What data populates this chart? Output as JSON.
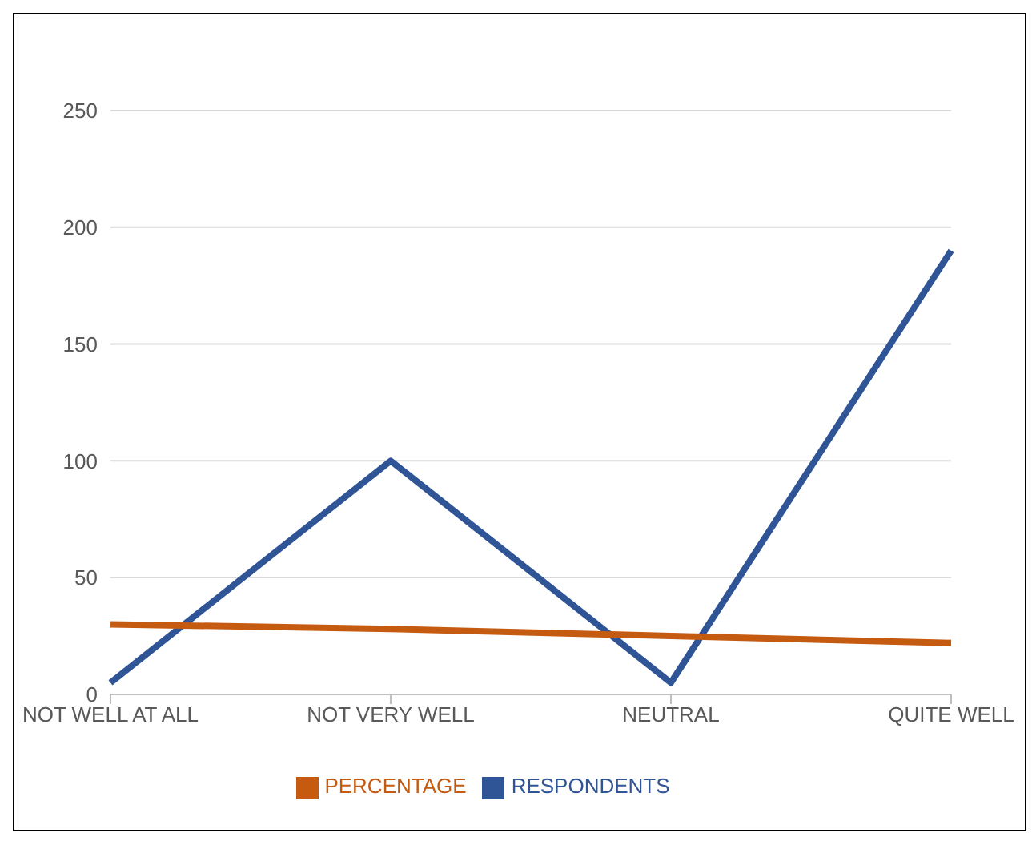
{
  "chart_data": {
    "type": "line",
    "categories": [
      "NOT WELL AT ALL",
      "NOT VERY WELL",
      "NEUTRAL",
      "QUITE WELL"
    ],
    "series": [
      {
        "name": "RESPONDENTS",
        "color": "#2f5597",
        "values": [
          5,
          100,
          5,
          190
        ]
      },
      {
        "name": "PERCENTAGE",
        "color": "#c55a11",
        "values": [
          30,
          28,
          25,
          22
        ]
      }
    ],
    "ylim": [
      0,
      250
    ],
    "yticks": [
      0,
      50,
      100,
      150,
      200,
      250
    ],
    "grid": "y",
    "legend": "bottom",
    "marker": "none",
    "line_style": "solid"
  }
}
